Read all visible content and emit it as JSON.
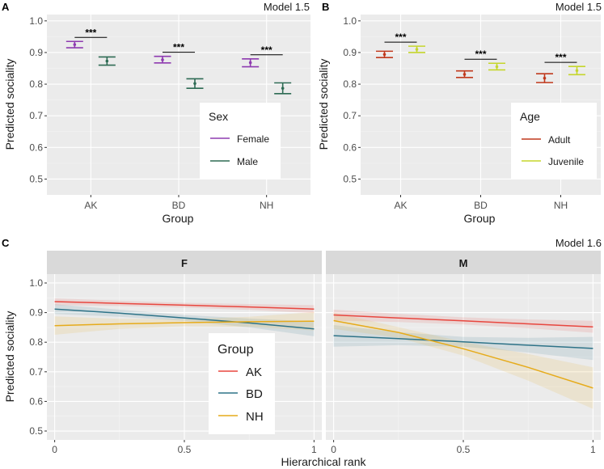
{
  "chart_data": [
    {
      "panel": "A",
      "type": "errorbar",
      "model_label": "Model 1.5",
      "xlabel": "Group",
      "ylabel": "Predicted sociality",
      "categories": [
        "AK",
        "BD",
        "NH"
      ],
      "ylim": [
        0.45,
        1.02
      ],
      "yticks": [
        0.5,
        0.6,
        0.7,
        0.8,
        0.9,
        1.0
      ],
      "ytick_labels": [
        "0.5",
        "0.6",
        "0.7",
        "0.8",
        "0.9",
        "1.0"
      ],
      "legend": {
        "title": "Sex",
        "position": "right"
      },
      "significance": [
        "***",
        "***",
        "***"
      ],
      "series": [
        {
          "name": "Female",
          "color": "#8e3bb0",
          "estimates": [
            0.925,
            0.877,
            0.868
          ],
          "lower": [
            0.915,
            0.867,
            0.855
          ],
          "upper": [
            0.935,
            0.888,
            0.88
          ]
        },
        {
          "name": "Male",
          "color": "#2e6b54",
          "estimates": [
            0.873,
            0.802,
            0.787
          ],
          "lower": [
            0.86,
            0.787,
            0.77
          ],
          "upper": [
            0.886,
            0.817,
            0.804
          ]
        }
      ]
    },
    {
      "panel": "B",
      "type": "errorbar",
      "model_label": "Model 1.5",
      "xlabel": "Group",
      "ylabel": "Predicted sociality",
      "categories": [
        "AK",
        "BD",
        "NH"
      ],
      "ylim": [
        0.45,
        1.02
      ],
      "yticks": [
        0.5,
        0.6,
        0.7,
        0.8,
        0.9,
        1.0
      ],
      "ytick_labels": [
        "0.5",
        "0.6",
        "0.7",
        "0.8",
        "0.9",
        "1.0"
      ],
      "legend": {
        "title": "Age",
        "position": "right"
      },
      "significance": [
        "***",
        "***",
        "***"
      ],
      "series": [
        {
          "name": "Adult",
          "color": "#c0391d",
          "estimates": [
            0.894,
            0.831,
            0.819
          ],
          "lower": [
            0.884,
            0.821,
            0.805
          ],
          "upper": [
            0.904,
            0.842,
            0.833
          ]
        },
        {
          "name": "Juvenile",
          "color": "#c5d62c",
          "estimates": [
            0.91,
            0.855,
            0.843
          ],
          "lower": [
            0.9,
            0.845,
            0.83
          ],
          "upper": [
            0.92,
            0.866,
            0.856
          ]
        }
      ]
    },
    {
      "panel": "C",
      "type": "line",
      "model_label": "Model 1.6",
      "xlabel": "Hierarchical rank",
      "ylabel": "Predicted sociality",
      "facets": [
        "F",
        "M"
      ],
      "xlim": [
        -0.03,
        1.03
      ],
      "xticks": [
        0,
        0.5,
        1
      ],
      "xtick_labels": [
        "0",
        "0.5",
        "1"
      ],
      "ylim": [
        0.47,
        1.03
      ],
      "yticks": [
        0.5,
        0.6,
        0.7,
        0.8,
        0.9,
        1.0
      ],
      "ytick_labels": [
        "0.5",
        "0.6",
        "0.7",
        "0.8",
        "0.9",
        "1.0"
      ],
      "legend": {
        "title": "Group",
        "position": "inside facet F, center"
      },
      "series": [
        {
          "name": "AK",
          "color": "#e8473f",
          "x": [
            0,
            0.25,
            0.5,
            0.75,
            1
          ],
          "facet_values": {
            "F": [
              0.937,
              0.931,
              0.925,
              0.919,
              0.912
            ],
            "M": [
              0.892,
              0.882,
              0.872,
              0.862,
              0.852
            ]
          },
          "facet_lower": {
            "F": [
              0.925,
              0.922,
              0.917,
              0.909,
              0.898
            ],
            "M": [
              0.873,
              0.868,
              0.86,
              0.847,
              0.832
            ]
          },
          "facet_upper": {
            "F": [
              0.948,
              0.94,
              0.933,
              0.929,
              0.925
            ],
            "M": [
              0.91,
              0.896,
              0.884,
              0.877,
              0.872
            ]
          }
        },
        {
          "name": "BD",
          "color": "#2e7388",
          "x": [
            0,
            0.25,
            0.5,
            0.75,
            1
          ],
          "facet_values": {
            "F": [
              0.912,
              0.898,
              0.882,
              0.865,
              0.845
            ],
            "M": [
              0.822,
              0.812,
              0.801,
              0.79,
              0.779
            ]
          },
          "facet_lower": {
            "F": [
              0.895,
              0.886,
              0.872,
              0.85,
              0.82
            ],
            "M": [
              0.785,
              0.79,
              0.785,
              0.765,
              0.74
            ]
          },
          "facet_upper": {
            "F": [
              0.928,
              0.91,
              0.892,
              0.88,
              0.87
            ],
            "M": [
              0.858,
              0.834,
              0.818,
              0.815,
              0.818
            ]
          }
        },
        {
          "name": "NH",
          "color": "#e6ab1b",
          "x": [
            0,
            0.25,
            0.5,
            0.75,
            1
          ],
          "facet_values": {
            "F": [
              0.856,
              0.862,
              0.866,
              0.869,
              0.871
            ],
            "M": [
              0.873,
              0.833,
              0.778,
              0.715,
              0.645
            ]
          },
          "facet_lower": {
            "F": [
              0.825,
              0.845,
              0.854,
              0.852,
              0.84
            ],
            "M": [
              0.845,
              0.815,
              0.755,
              0.67,
              0.575
            ]
          },
          "facet_upper": {
            "F": [
              0.887,
              0.879,
              0.878,
              0.886,
              0.902
            ],
            "M": [
              0.9,
              0.851,
              0.801,
              0.76,
              0.715
            ]
          }
        }
      ]
    }
  ]
}
